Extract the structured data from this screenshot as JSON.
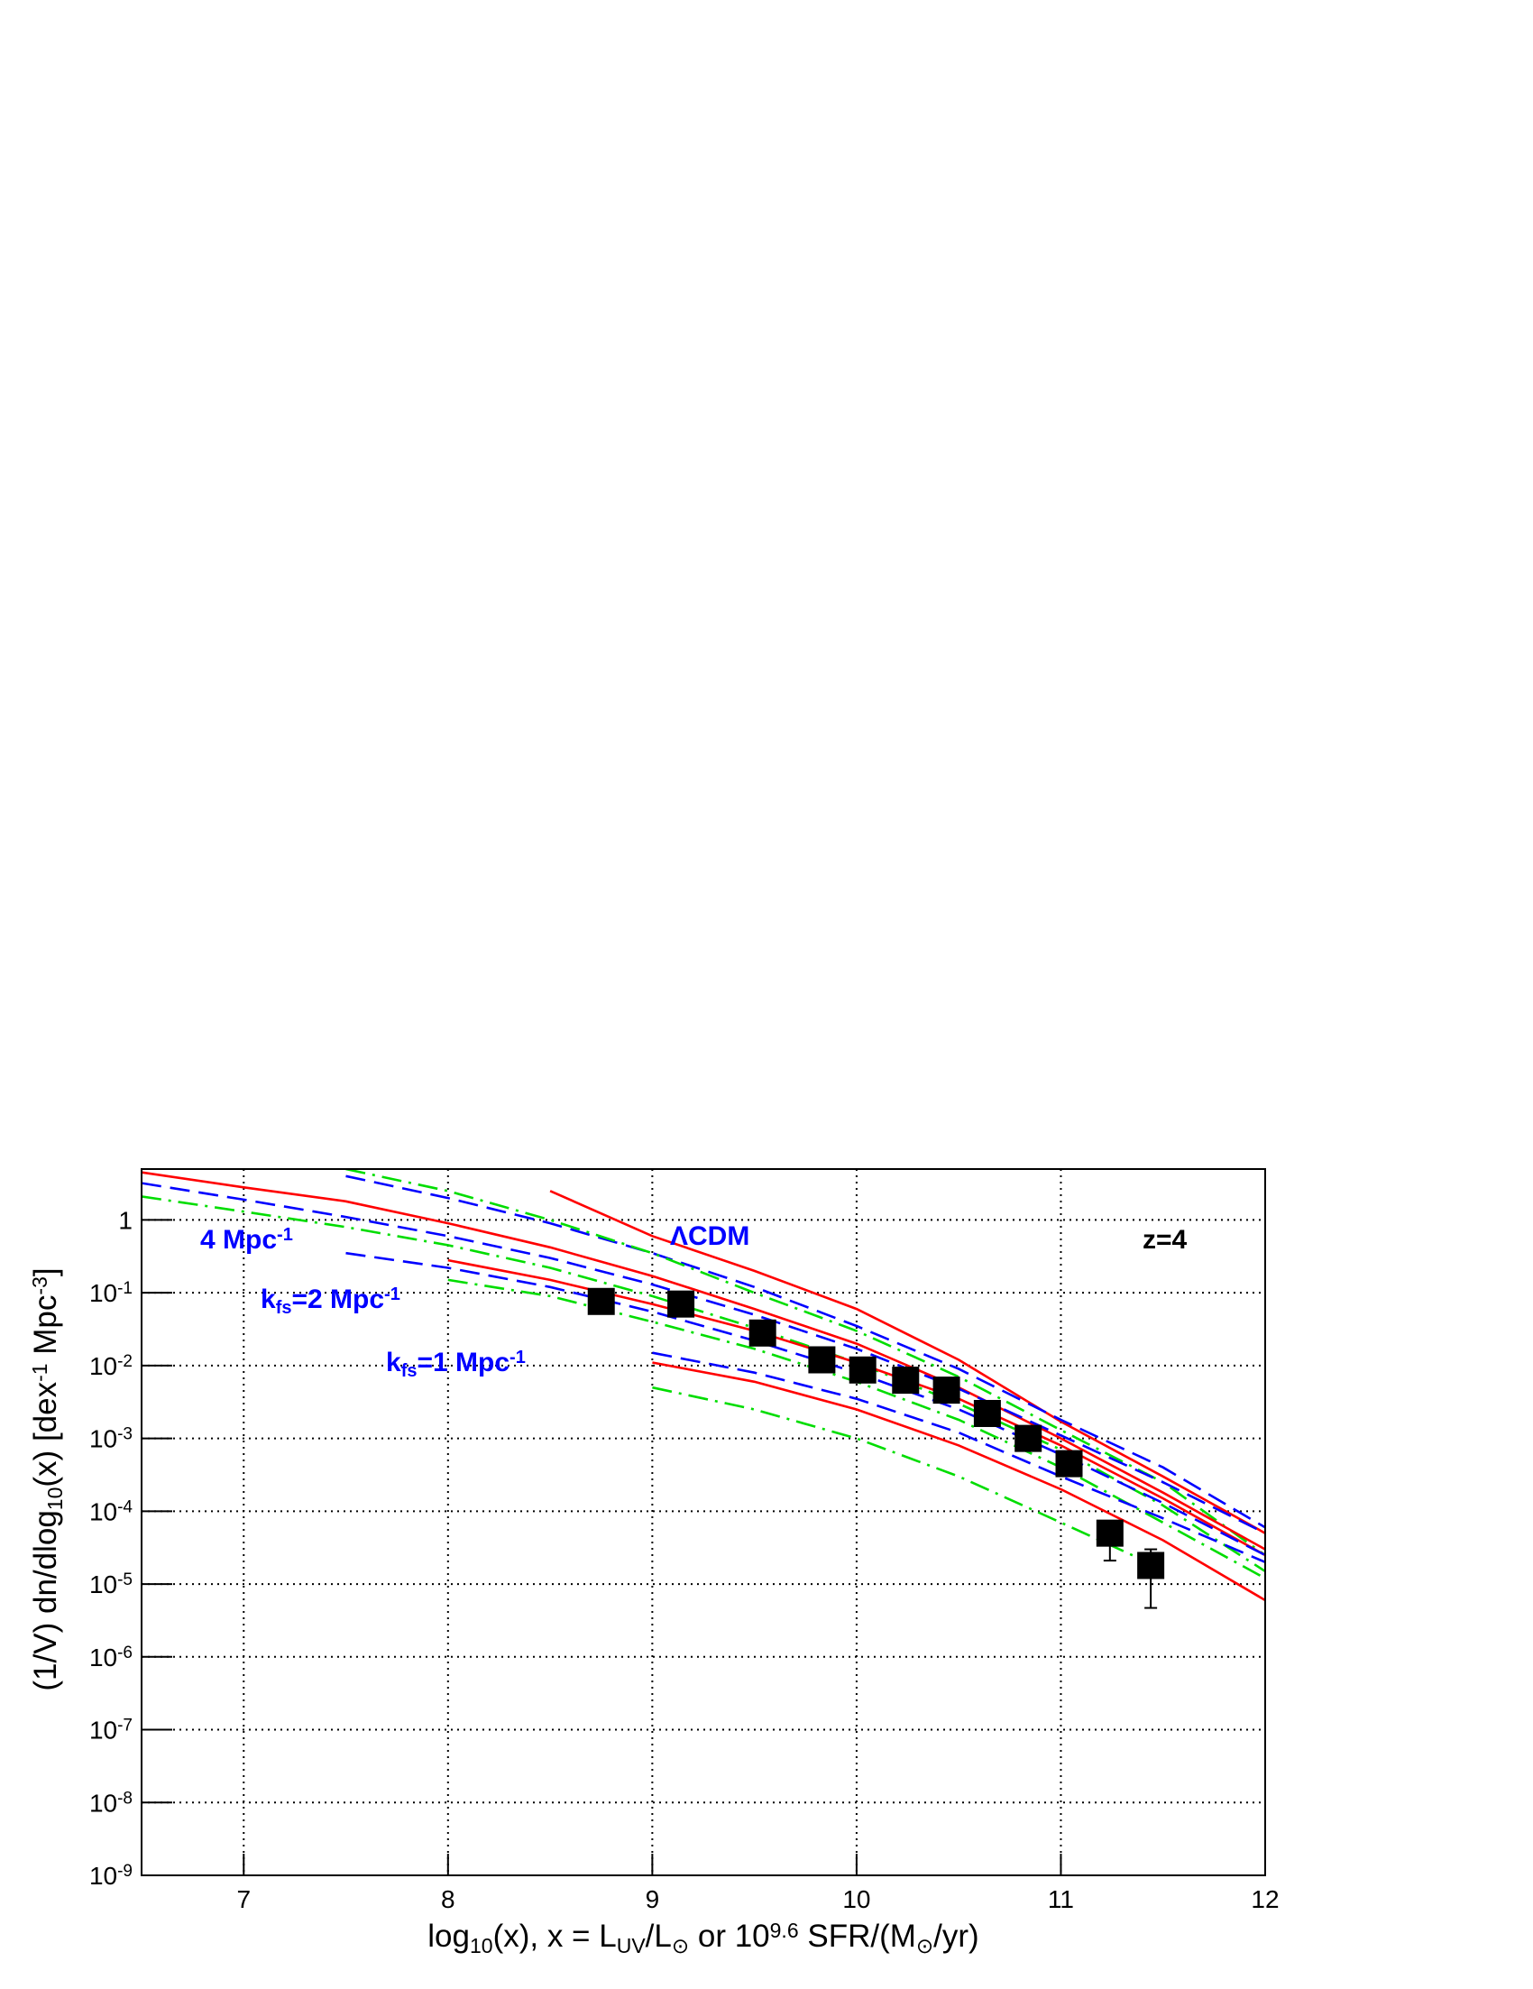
{
  "chart_data": {
    "type": "line",
    "log_y": true,
    "grid": true,
    "xlim": [
      6.5,
      12
    ],
    "ylim": [
      1e-09,
      5
    ],
    "xticks": [
      7,
      8,
      9,
      10,
      11,
      12
    ],
    "yticks": [
      {
        "value": 1e-09,
        "label": "10",
        "exponent": "-9"
      },
      {
        "value": 1e-08,
        "label": "10",
        "exponent": "-8"
      },
      {
        "value": 1e-07,
        "label": "10",
        "exponent": "-7"
      },
      {
        "value": 1e-06,
        "label": "10",
        "exponent": "-6"
      },
      {
        "value": 1e-05,
        "label": "10",
        "exponent": "-5"
      },
      {
        "value": 0.0001,
        "label": "10",
        "exponent": "-4"
      },
      {
        "value": 0.001,
        "label": "10",
        "exponent": "-3"
      },
      {
        "value": 0.01,
        "label": "10",
        "exponent": "-2"
      },
      {
        "value": 0.1,
        "label": "10",
        "exponent": "-1"
      },
      1
    ],
    "x_label": [
      {
        "text": "log"
      },
      {
        "sub": "10"
      },
      {
        "text": "(x), x = L"
      },
      {
        "sub": "UV"
      },
      {
        "text": "/L"
      },
      {
        "sub": "⊙"
      },
      {
        "text": "  or   10"
      },
      {
        "sup": "9.6"
      },
      {
        "text": " SFR/(M"
      },
      {
        "sub": "⊙"
      },
      {
        "text": "/yr)"
      }
    ],
    "y_label": [
      {
        "text": "(1/V) dn/dlog"
      },
      {
        "sub": "10"
      },
      {
        "text": "(x)  [dex"
      },
      {
        "sup": "-1"
      },
      {
        "text": " Mpc"
      },
      {
        "sup": "-3"
      },
      {
        "text": "]"
      }
    ],
    "annotations": [
      {
        "color": "#0000ff",
        "parts": [
          {
            "text": "4 Mpc"
          },
          {
            "sup": "-1"
          }
        ]
      },
      {
        "color": "#0000ff",
        "parts": [
          {
            "text": "k"
          },
          {
            "sub": "fs"
          },
          {
            "text": "=2 Mpc"
          },
          {
            "sup": "-1"
          }
        ]
      },
      {
        "color": "#0000ff",
        "parts": [
          {
            "text": "k"
          },
          {
            "sub": "fs"
          },
          {
            "text": "=1 Mpc"
          },
          {
            "sup": "-1"
          }
        ]
      },
      {
        "color": "#0000ff",
        "parts": [
          {
            "text": "ΛCDM"
          }
        ]
      },
      {
        "color": "#000000",
        "parts": [
          {
            "text": "z=4"
          }
        ]
      }
    ],
    "x": [
      6.5,
      7,
      7.5,
      8,
      8.5,
      9,
      9.5,
      10,
      10.5,
      11,
      11.5,
      12
    ],
    "series": [
      {
        "color": "#ff0000",
        "style": "solid",
        "values": [
          null,
          null,
          null,
          null,
          2.5,
          0.6,
          0.2,
          0.06,
          0.012,
          0.0017,
          0.0003,
          5e-05
        ]
      },
      {
        "color": "#0000ff",
        "style": "dashed",
        "values": [
          null,
          null,
          4,
          2,
          0.9,
          0.35,
          0.12,
          0.035,
          0.009,
          0.0018,
          0.0004,
          6e-05
        ]
      },
      {
        "color": "#00dd00",
        "style": "dashdot",
        "values": [
          null,
          null,
          5,
          2.5,
          1.0,
          0.35,
          0.1,
          0.03,
          0.007,
          0.0013,
          0.00025,
          2.5e-05
        ]
      },
      {
        "color": "#ff0000",
        "style": "solid",
        "values": [
          4.5,
          2.8,
          1.8,
          0.9,
          0.42,
          0.17,
          0.06,
          0.02,
          0.005,
          0.001,
          0.00018,
          3e-05
        ]
      },
      {
        "color": "#0000ff",
        "style": "dashed",
        "values": [
          3.2,
          1.9,
          1.1,
          0.6,
          0.3,
          0.13,
          0.05,
          0.017,
          0.0048,
          0.0011,
          0.00025,
          5e-05
        ]
      },
      {
        "color": "#00dd00",
        "style": "dashdot",
        "values": [
          2.1,
          1.3,
          0.8,
          0.45,
          0.22,
          0.09,
          0.033,
          0.011,
          0.003,
          0.0007,
          0.00012,
          1.5e-05
        ]
      },
      {
        "color": "#ff0000",
        "style": "solid",
        "values": [
          null,
          null,
          null,
          0.28,
          0.15,
          0.07,
          0.03,
          0.011,
          0.0035,
          0.0008,
          0.00015,
          2.5e-05
        ]
      },
      {
        "color": "#0000ff",
        "style": "dashed",
        "values": [
          null,
          null,
          0.35,
          0.22,
          0.12,
          0.055,
          0.022,
          0.008,
          0.0025,
          0.0006,
          0.00013,
          2.5e-05
        ]
      },
      {
        "color": "#00dd00",
        "style": "dashdot",
        "values": [
          null,
          null,
          null,
          0.15,
          0.09,
          0.04,
          0.017,
          0.006,
          0.0018,
          0.0004,
          7e-05,
          1.2e-05
        ]
      },
      {
        "color": "#ff0000",
        "style": "solid",
        "values": [
          null,
          null,
          null,
          null,
          null,
          0.011,
          0.006,
          0.0025,
          0.0008,
          0.0002,
          4e-05,
          6e-06
        ]
      },
      {
        "color": "#0000ff",
        "style": "dashed",
        "values": [
          null,
          null,
          null,
          null,
          null,
          0.015,
          0.008,
          0.0035,
          0.0012,
          0.0003,
          8e-05,
          2e-05
        ]
      },
      {
        "color": "#00dd00",
        "style": "dashdot",
        "values": [
          null,
          null,
          null,
          null,
          null,
          0.005,
          0.0025,
          0.001,
          0.0003,
          7e-05,
          1.6e-05,
          null
        ]
      }
    ],
    "points": {
      "color": "#000000",
      "x": [
        8.75,
        9.14,
        9.54,
        9.83,
        10.03,
        10.24,
        10.44,
        10.64,
        10.84,
        11.04,
        11.24,
        11.44
      ],
      "values": [
        0.076,
        0.07,
        0.028,
        0.012,
        0.0087,
        0.0063,
        0.0046,
        0.0022,
        0.001,
        0.00045,
        5e-05,
        1.8e-05
      ],
      "y_low": [
        null,
        null,
        null,
        null,
        null,
        null,
        null,
        null,
        null,
        null,
        2.1e-05,
        4.7e-06
      ],
      "y_high": [
        null,
        null,
        null,
        null,
        null,
        null,
        null,
        null,
        null,
        null,
        7e-05,
        3e-05
      ]
    }
  }
}
